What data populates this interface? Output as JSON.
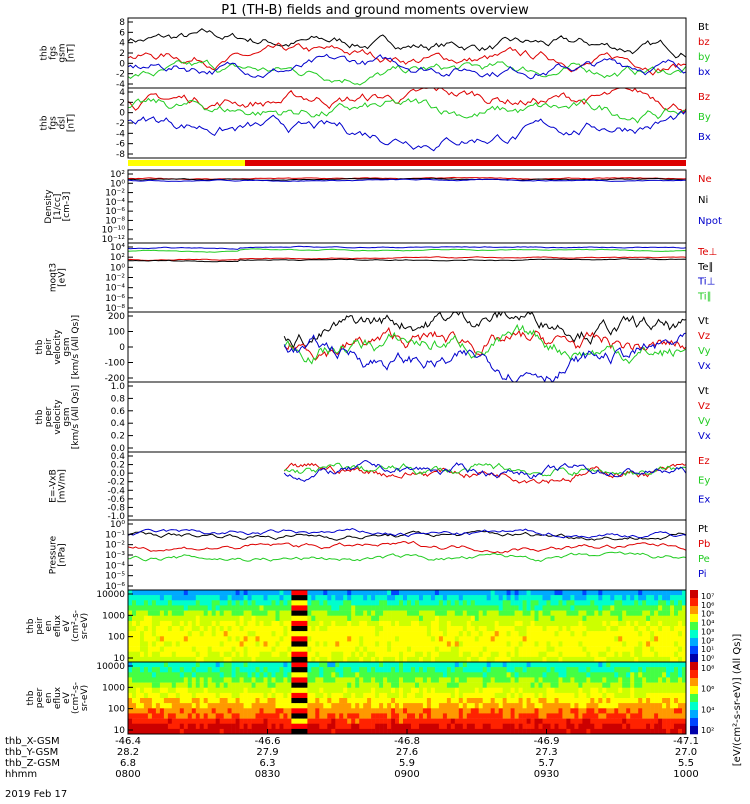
{
  "title": "P1 (TH-B) fields and ground moments overview",
  "date_label": "2019 Feb 17",
  "colors": {
    "black": "#000000",
    "red": "#dd0000",
    "green": "#22cc22",
    "blue": "#0000cc",
    "yellow": "#ffff00"
  },
  "chart_data": [
    {
      "type": "line",
      "panel": "fgs",
      "ylabel": [
        "thb",
        "fgs",
        "gsm",
        "[nT]"
      ],
      "ylim": [
        -4,
        8
      ],
      "ticks": [
        8,
        6,
        4,
        2,
        0,
        -2,
        -4
      ],
      "legend": [
        {
          "name": "Bt",
          "color": "black"
        },
        {
          "name": "bz",
          "color": "red"
        },
        {
          "name": "by",
          "color": "green"
        },
        {
          "name": "bx",
          "color": "blue"
        }
      ]
    },
    {
      "type": "line",
      "panel": "fgs-dsl",
      "ylabel": [
        "thb",
        "fgs",
        "dsl",
        "[nT]"
      ],
      "ylim": [
        -8,
        4
      ],
      "ticks": [
        4,
        2,
        0,
        -2,
        -4,
        -6,
        -8
      ],
      "legend": [
        {
          "name": "Bz",
          "color": "red"
        },
        {
          "name": "By",
          "color": "green"
        },
        {
          "name": "Bx",
          "color": "blue"
        }
      ]
    },
    {
      "type": "line",
      "panel": "density",
      "ylabel": [
        "Density",
        "[1/cc]",
        "[cm-3]"
      ],
      "ylog": true,
      "ticks": [
        "10²",
        "10⁰",
        "10⁻²",
        "10⁻⁴",
        "10⁻⁶",
        "10⁻⁸",
        "10⁻¹⁰",
        "10⁻¹²"
      ],
      "legend": [
        {
          "name": "Ne",
          "color": "red"
        },
        {
          "name": "Ni",
          "color": "black"
        },
        {
          "name": "Npot",
          "color": "blue"
        }
      ]
    },
    {
      "type": "line",
      "panel": "temperature",
      "ylabel": [
        "moqt3",
        "[eV]"
      ],
      "ylog": true,
      "ticks": [
        "10⁴",
        "10²",
        "10⁰",
        "10⁻²",
        "10⁻⁴",
        "10⁻⁶",
        "10⁻⁸"
      ],
      "legend": [
        {
          "name": "Te⊥",
          "color": "red"
        },
        {
          "name": "Te∥",
          "color": "black"
        },
        {
          "name": "Ti⊥",
          "color": "blue"
        },
        {
          "name": "Ti∥",
          "color": "green"
        }
      ]
    },
    {
      "type": "line",
      "panel": "peir-velocity",
      "ylabel": [
        "thb",
        "peir",
        "velocity",
        "gsm",
        "[km/s (All Qs)]"
      ],
      "ylim": [
        -200,
        200
      ],
      "ticks": [
        200,
        100,
        0,
        -100,
        -200
      ],
      "legend": [
        {
          "name": "Vt",
          "color": "black"
        },
        {
          "name": "Vz",
          "color": "red"
        },
        {
          "name": "Vy",
          "color": "green"
        },
        {
          "name": "Vx",
          "color": "blue"
        }
      ]
    },
    {
      "type": "line",
      "panel": "peer-velocity",
      "ylabel": [
        "thb",
        "peer",
        "velocity",
        "gsm",
        "[km/s (All Qs)]"
      ],
      "ylim": [
        0,
        1
      ],
      "ticks": [
        "1.0",
        "0.8",
        "0.6",
        "0.4",
        "0.2",
        "0.0"
      ],
      "legend": [
        {
          "name": "Vt",
          "color": "black"
        },
        {
          "name": "Vz",
          "color": "red"
        },
        {
          "name": "Vy",
          "color": "green"
        },
        {
          "name": "Vx",
          "color": "blue"
        }
      ]
    },
    {
      "type": "line",
      "panel": "efield",
      "ylabel": [
        "E=-VxB",
        "[mV/m]"
      ],
      "ylim": [
        -1,
        0.4
      ],
      "ticks": [
        "0.4",
        "0.2",
        "0.0",
        "-0.2",
        "-0.4",
        "-0.6",
        "-0.8",
        "-1.0"
      ],
      "legend": [
        {
          "name": "Ez",
          "color": "red"
        },
        {
          "name": "Ey",
          "color": "green"
        },
        {
          "name": "Ex",
          "color": "blue"
        }
      ]
    },
    {
      "type": "line",
      "panel": "pressure",
      "ylabel": [
        "Pressure",
        "[nPa]"
      ],
      "ylog": true,
      "ticks": [
        "10⁰",
        "10⁻¹",
        "10⁻²",
        "10⁻³",
        "10⁻⁴",
        "10⁻⁵",
        "10⁻⁶"
      ],
      "legend": [
        {
          "name": "Pt",
          "color": "black"
        },
        {
          "name": "Pb",
          "color": "red"
        },
        {
          "name": "Pe",
          "color": "green"
        },
        {
          "name": "Pi",
          "color": "blue"
        }
      ]
    },
    {
      "type": "heatmap",
      "panel": "peir-eflux",
      "ylabel": [
        "thb",
        "peir",
        "en",
        "eflux",
        "eV",
        "(cm²-s-",
        "sr-eV)"
      ],
      "ylog": true,
      "ticks": [
        "10000",
        "1000",
        "100",
        "10"
      ],
      "colorbar_ticks": [
        "10⁷",
        "10⁶",
        "10⁵",
        "10⁴",
        "10³",
        "10²",
        "10¹",
        "10⁰"
      ]
    },
    {
      "type": "heatmap",
      "panel": "peer-eflux",
      "ylabel": [
        "thb",
        "peer",
        "en",
        "eflux",
        "eV",
        "(cm²-s-",
        "sr-eV)"
      ],
      "ylog": true,
      "ticks": [
        "10000",
        "1000",
        "100",
        "10"
      ],
      "colorbar_ticks": [
        "10⁸",
        "10⁶",
        "10⁴",
        "10²"
      ],
      "colorbar_label": "[eV/(cm²-s-sr-eV)] (All Qs)]"
    }
  ],
  "xaxis": {
    "rows": [
      {
        "label": "thb_X-GSM",
        "values": [
          "-46.4",
          "-46.6",
          "-46.8",
          "-46.9",
          "-47.1"
        ]
      },
      {
        "label": "thb_Y-GSM",
        "values": [
          "28.2",
          "27.9",
          "27.6",
          "27.3",
          "27.0"
        ]
      },
      {
        "label": "thb_Z-GSM",
        "values": [
          "6.8",
          "6.3",
          "5.9",
          "5.7",
          "5.5"
        ]
      },
      {
        "label": "hhmm",
        "values": [
          "0800",
          "0830",
          "0900",
          "0930",
          "1000"
        ]
      }
    ]
  }
}
